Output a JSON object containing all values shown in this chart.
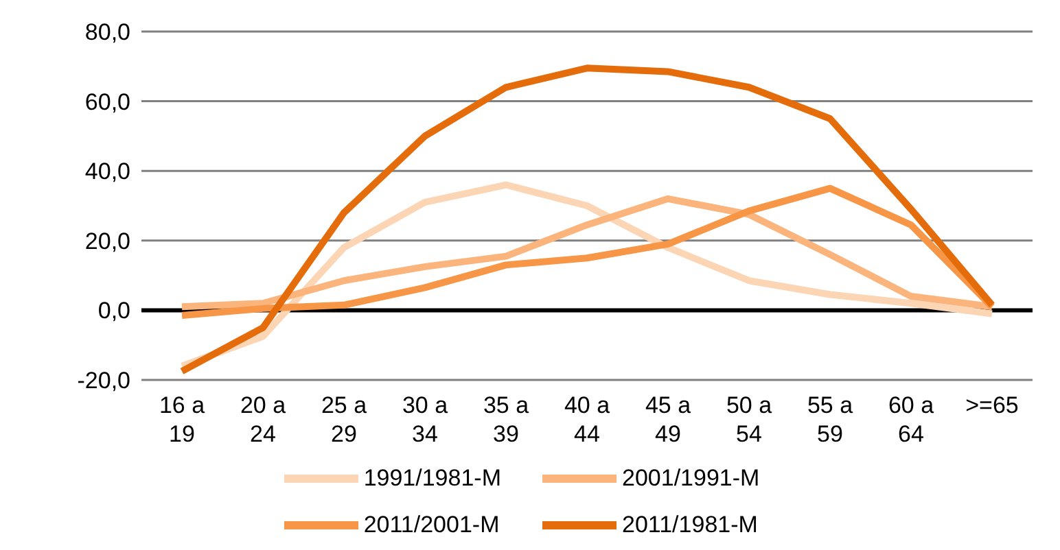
{
  "chart_data": {
    "type": "line",
    "categories": [
      "16 a 19",
      "20 a 24",
      "25 a 29",
      "30 a 34",
      "35 a 39",
      "40 a 44",
      "45 a 49",
      "50 a 54",
      "55 a 59",
      "60 a 64",
      ">=65"
    ],
    "series": [
      {
        "name": "1991/1981-M",
        "color": "#fcd5b4",
        "values": [
          -16,
          -7.5,
          18,
          31,
          36,
          30,
          18,
          8.5,
          4.5,
          2,
          -1
        ]
      },
      {
        "name": "2001/1991-M",
        "color": "#fab47c",
        "values": [
          1,
          2,
          8.5,
          12.5,
          15.5,
          24.5,
          32,
          27.5,
          16,
          4,
          1
        ]
      },
      {
        "name": "2011/2001-M",
        "color": "#f79646",
        "values": [
          -1.5,
          0.5,
          1.5,
          6.5,
          13,
          15,
          19,
          28.5,
          35,
          24.5,
          1
        ]
      },
      {
        "name": "2011/1981-M",
        "color": "#e46c0a",
        "values": [
          -17.5,
          -5,
          28,
          50,
          64,
          69.5,
          68.5,
          64,
          55,
          29,
          1.5
        ]
      }
    ],
    "ylim": [
      -20,
      80
    ],
    "yticks": [
      {
        "value": -20,
        "label": "-20,0"
      },
      {
        "value": 0,
        "label": "0,0"
      },
      {
        "value": 20,
        "label": "20,0"
      },
      {
        "value": 40,
        "label": "40,0"
      },
      {
        "value": 60,
        "label": "60,0"
      },
      {
        "value": 80,
        "label": "80,0"
      }
    ],
    "grid": "y",
    "legend": "bottom",
    "marker": "none",
    "line_style": "solid",
    "ref_lines": [
      {
        "axis": "y",
        "value": 0,
        "color": "#000000"
      }
    ]
  }
}
